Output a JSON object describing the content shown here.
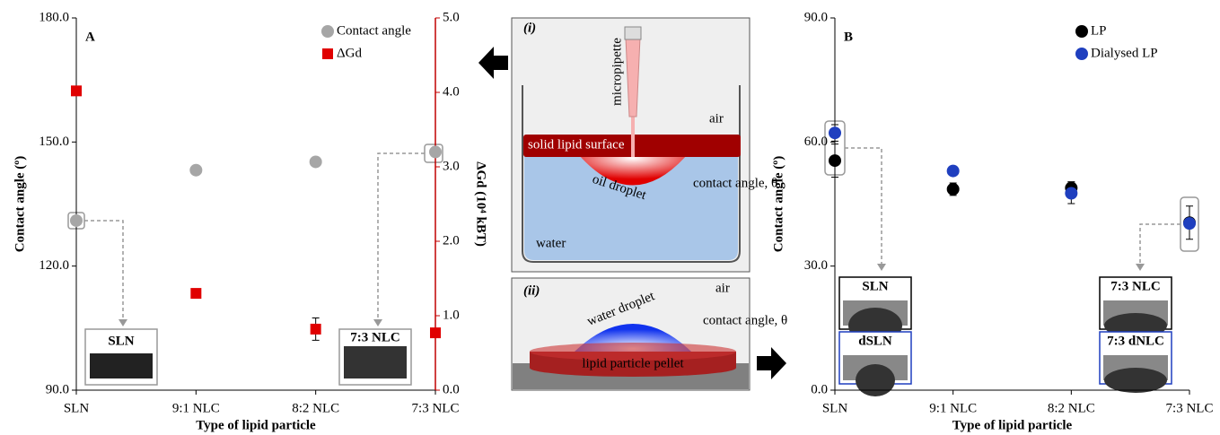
{
  "chart_data": [
    {
      "type": "scatter",
      "title": "A",
      "x_label": "Type of lipid particle",
      "y_label": "Contact angle (º)",
      "y2_label": "ΔGd (10⁴ kBT)",
      "categories": [
        "SLN",
        "9:1 NLC",
        "8:2 NLC",
        "7:3 NLC"
      ],
      "ylim": [
        90,
        180
      ],
      "yticks": [
        {
          "value": 90,
          "label": "90.0"
        },
        {
          "value": 120,
          "label": "120.0"
        },
        {
          "value": 150,
          "label": "150.0"
        },
        {
          "value": 180,
          "label": "180.0"
        }
      ],
      "y2lim": [
        0,
        5
      ],
      "y2ticks": [
        {
          "value": 0,
          "label": "0.0"
        },
        {
          "value": 1,
          "label": "1.0"
        },
        {
          "value": 2,
          "label": "2.0"
        },
        {
          "value": 3,
          "label": "3.0"
        },
        {
          "value": 4,
          "label": "4.0"
        },
        {
          "value": 5,
          "label": "5.0"
        }
      ],
      "y2color": "#c00000",
      "legend": "upper right",
      "series": [
        {
          "name": "Contact angle",
          "color": "#a6a6a6",
          "marker": "circle",
          "values": [
            131,
            143.2,
            145.2,
            147.6
          ]
        },
        {
          "name": "ΔGd",
          "color": "#e00000",
          "marker": "square",
          "axis": "y2",
          "values": [
            4.02,
            1.3,
            0.82,
            0.77
          ],
          "errors": [
            null,
            null,
            0.15,
            null
          ]
        }
      ],
      "insets": [
        "SLN",
        "7:3 NLC"
      ]
    },
    {
      "type": "scatter",
      "title": "B",
      "x_label": "Type of lipid particle",
      "y_label": "Contact angle (º)",
      "categories": [
        "SLN",
        "9:1 NLC",
        "8:2 NLC",
        "7:3 NLC"
      ],
      "ylim": [
        0,
        90
      ],
      "yticks": [
        {
          "value": 0,
          "label": "0.0"
        },
        {
          "value": 30,
          "label": "30.0"
        },
        {
          "value": 60,
          "label": "60.0"
        },
        {
          "value": 90,
          "label": "90.0"
        }
      ],
      "legend": "upper right",
      "series": [
        {
          "name": "LP",
          "color": "#000000",
          "marker": "circle",
          "values": [
            55.5,
            48.6,
            48.9,
            40.5
          ],
          "errors": [
            4,
            1.5,
            1.5,
            4
          ]
        },
        {
          "name": "Dialysed LP",
          "color": "#1f3fbf",
          "marker": "circle",
          "values": [
            62.2,
            53,
            47.6,
            40.3
          ],
          "errors": [
            2,
            1,
            2.5,
            1
          ]
        }
      ],
      "insets": [
        "SLN",
        "dSLN",
        "7:3 NLC",
        "7:3 dNLC"
      ]
    }
  ],
  "diagram": {
    "panel_i": "(i)",
    "micropipette": "micropipette",
    "air_i": "air",
    "surface": "solid lipid surface",
    "oil": "oil droplet",
    "angle_i": "contact angle, θ",
    "water": "water",
    "panel_ii": "(ii)",
    "air_ii": "air",
    "water_droplet": "water droplet",
    "angle_ii": "contact angle, θ",
    "pellet": "lipid particle pellet"
  }
}
